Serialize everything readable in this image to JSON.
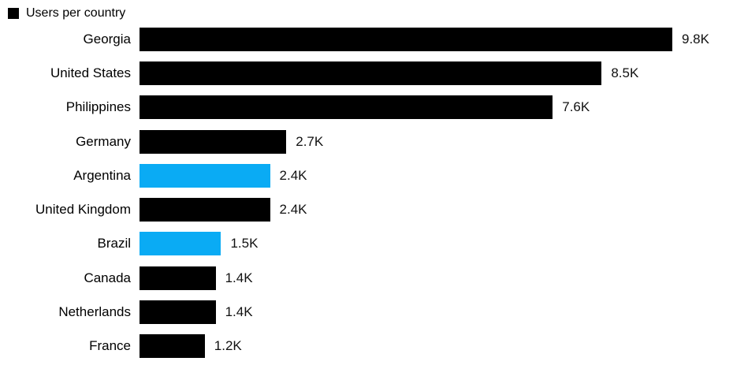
{
  "legend": {
    "label": "Users per country",
    "swatch_color": "#000000"
  },
  "chart_data": {
    "type": "bar",
    "orientation": "horizontal",
    "title": "Users per country",
    "categories": [
      "Georgia",
      "United States",
      "Philippines",
      "Germany",
      "Argentina",
      "United Kingdom",
      "Brazil",
      "Canada",
      "Netherlands",
      "France"
    ],
    "values": [
      9.8,
      8.5,
      7.6,
      2.7,
      2.4,
      2.4,
      1.5,
      1.4,
      1.4,
      1.2
    ],
    "value_labels": [
      "9.8K",
      "8.5K",
      "7.6K",
      "2.7K",
      "2.4K",
      "2.4K",
      "1.5K",
      "1.4K",
      "1.4K",
      "1.2K"
    ],
    "unit": "K",
    "xlim": [
      0,
      9.8
    ],
    "grid": false,
    "legend_position": "top-left",
    "colors": {
      "default": "#000000",
      "highlight": "#0aabf4"
    },
    "highlighted_categories": [
      "Argentina",
      "Brazil"
    ],
    "bar_colors": [
      "#000000",
      "#000000",
      "#000000",
      "#000000",
      "#0aabf4",
      "#000000",
      "#0aabf4",
      "#000000",
      "#000000",
      "#000000"
    ]
  }
}
